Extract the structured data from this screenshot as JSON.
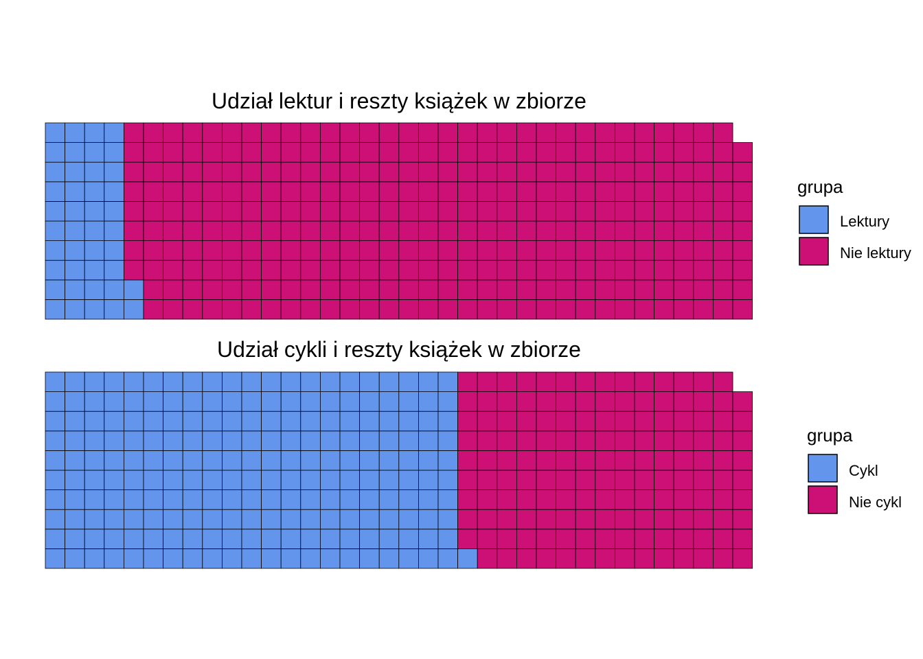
{
  "chart_data": [
    {
      "type": "waffle",
      "title": "Udział lektur i reszty książek w zbiorze",
      "rows": 10,
      "fill_order": "column-wise, bottom-to-top, left-to-right",
      "grid": false,
      "legend_position": "right",
      "legend": {
        "title": "grupa",
        "entries": [
          {
            "label": "Lektury",
            "color": "#6495ED"
          },
          {
            "label": "Nie lektury",
            "color": "#CD1076"
          }
        ]
      },
      "series": [
        {
          "name": "Lektury",
          "value": 42,
          "color": "#6495ED"
        },
        {
          "name": "Nie lektury",
          "value": 317,
          "color": "#CD1076"
        }
      ]
    },
    {
      "type": "waffle",
      "title": "Udział cykli i reszty książek w zbiorze",
      "rows": 10,
      "fill_order": "column-wise, bottom-to-top, left-to-right",
      "grid": false,
      "legend_position": "right",
      "legend": {
        "title": "grupa",
        "entries": [
          {
            "label": "Cykl",
            "color": "#6495ED"
          },
          {
            "label": "Nie cykl",
            "color": "#CD1076"
          }
        ]
      },
      "series": [
        {
          "name": "Cykl",
          "value": 211,
          "color": "#6495ED"
        },
        {
          "name": "Nie cykl",
          "value": 148,
          "color": "#CD1076"
        }
      ]
    }
  ]
}
